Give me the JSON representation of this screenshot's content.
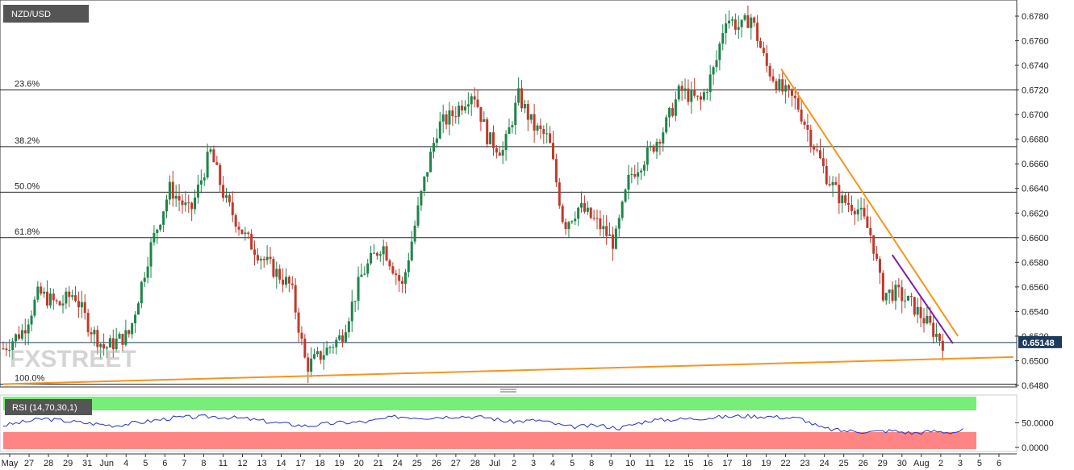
{
  "symbol": "NZD/USD",
  "watermark": "FXSTREET",
  "current_price_label": "0.65148",
  "chart_data": {
    "type": "candlestick",
    "title": "NZD/USD",
    "price_axis": {
      "min": 0.648,
      "max": 0.678,
      "step": 0.002,
      "tick_labels": [
        "0.6780",
        "0.6760",
        "0.6740",
        "0.6720",
        "0.6700",
        "0.6680",
        "0.6660",
        "0.6640",
        "0.6620",
        "0.6600",
        "0.6580",
        "0.6560",
        "0.6540",
        "0.6520",
        "0.6500",
        "0.6480"
      ]
    },
    "date_labels": [
      "May",
      "27",
      "28",
      "29",
      "31",
      "Jun",
      "4",
      "5",
      "6",
      "7",
      "8",
      "11",
      "12",
      "13",
      "14",
      "17",
      "18",
      "19",
      "20",
      "21",
      "24",
      "25",
      "26",
      "27",
      "28",
      "Jul",
      "2",
      "3",
      "4",
      "5",
      "8",
      "9",
      "10",
      "11",
      "12",
      "15",
      "16",
      "17",
      "18",
      "19",
      "22",
      "23",
      "24",
      "25",
      "26",
      "29",
      "30",
      "Aug",
      "2",
      "3",
      "5",
      "6"
    ],
    "fibonacci_levels": [
      {
        "label": "23.6%",
        "price": 0.672
      },
      {
        "label": "38.2%",
        "price": 0.6674
      },
      {
        "label": "50.0%",
        "price": 0.6637
      },
      {
        "label": "61.8%",
        "price": 0.66
      },
      {
        "label": "100.0%",
        "price": 0.6481
      }
    ],
    "current_price": 0.65148,
    "trendlines": [
      {
        "name": "support",
        "color": "#f7941d",
        "from": [
          0,
          0.6481
        ],
        "to": [
          1,
          0.6503
        ]
      },
      {
        "name": "resistance",
        "color": "#f7941d",
        "from": [
          0.77,
          0.6737
        ],
        "to": [
          0.945,
          0.652
        ]
      },
      {
        "name": "short-term resistance",
        "color": "#7a1fa2",
        "from": [
          0.88,
          0.6586
        ],
        "to": [
          0.94,
          0.6514
        ]
      }
    ],
    "series_keypoints": [
      [
        0.0,
        0.651
      ],
      [
        0.02,
        0.6525
      ],
      [
        0.035,
        0.6555
      ],
      [
        0.055,
        0.6545
      ],
      [
        0.07,
        0.6555
      ],
      [
        0.085,
        0.6528
      ],
      [
        0.1,
        0.651
      ],
      [
        0.125,
        0.6522
      ],
      [
        0.145,
        0.659
      ],
      [
        0.165,
        0.664
      ],
      [
        0.185,
        0.662
      ],
      [
        0.205,
        0.667
      ],
      [
        0.22,
        0.663
      ],
      [
        0.24,
        0.66
      ],
      [
        0.26,
        0.658
      ],
      [
        0.285,
        0.656
      ],
      [
        0.3,
        0.6495
      ],
      [
        0.315,
        0.6505
      ],
      [
        0.335,
        0.652
      ],
      [
        0.355,
        0.657
      ],
      [
        0.375,
        0.6595
      ],
      [
        0.395,
        0.656
      ],
      [
        0.415,
        0.664
      ],
      [
        0.43,
        0.669
      ],
      [
        0.445,
        0.67
      ],
      [
        0.465,
        0.672
      ],
      [
        0.48,
        0.668
      ],
      [
        0.495,
        0.667
      ],
      [
        0.51,
        0.6715
      ],
      [
        0.525,
        0.669
      ],
      [
        0.54,
        0.668
      ],
      [
        0.555,
        0.661
      ],
      [
        0.57,
        0.6625
      ],
      [
        0.59,
        0.661
      ],
      [
        0.605,
        0.6595
      ],
      [
        0.62,
        0.665
      ],
      [
        0.64,
        0.667
      ],
      [
        0.655,
        0.669
      ],
      [
        0.67,
        0.672
      ],
      [
        0.69,
        0.671
      ],
      [
        0.705,
        0.674
      ],
      [
        0.715,
        0.678
      ],
      [
        0.73,
        0.677
      ],
      [
        0.74,
        0.678
      ],
      [
        0.755,
        0.674
      ],
      [
        0.77,
        0.672
      ],
      [
        0.785,
        0.671
      ],
      [
        0.8,
        0.668
      ],
      [
        0.815,
        0.665
      ],
      [
        0.83,
        0.663
      ],
      [
        0.845,
        0.6625
      ],
      [
        0.86,
        0.66
      ],
      [
        0.87,
        0.6555
      ],
      [
        0.885,
        0.6555
      ],
      [
        0.9,
        0.6545
      ],
      [
        0.915,
        0.653
      ],
      [
        0.93,
        0.6515
      ]
    ],
    "rsi": {
      "label": "RSI (14,70,30,1)",
      "overbought": 70,
      "oversold": 30,
      "tick_labels": [
        "50.0000",
        "0.0000"
      ],
      "keypoints": [
        [
          0.0,
          45
        ],
        [
          0.04,
          58
        ],
        [
          0.08,
          50
        ],
        [
          0.11,
          45
        ],
        [
          0.14,
          52
        ],
        [
          0.17,
          60
        ],
        [
          0.21,
          62
        ],
        [
          0.24,
          58
        ],
        [
          0.27,
          50
        ],
        [
          0.3,
          44
        ],
        [
          0.33,
          50
        ],
        [
          0.36,
          52
        ],
        [
          0.39,
          62
        ],
        [
          0.42,
          60
        ],
        [
          0.45,
          63
        ],
        [
          0.48,
          60
        ],
        [
          0.5,
          52
        ],
        [
          0.53,
          55
        ],
        [
          0.56,
          42
        ],
        [
          0.59,
          45
        ],
        [
          0.61,
          40
        ],
        [
          0.64,
          55
        ],
        [
          0.67,
          57
        ],
        [
          0.7,
          60
        ],
        [
          0.73,
          63
        ],
        [
          0.76,
          62
        ],
        [
          0.79,
          58
        ],
        [
          0.81,
          40
        ],
        [
          0.83,
          35
        ],
        [
          0.86,
          33
        ],
        [
          0.88,
          35
        ],
        [
          0.9,
          30
        ],
        [
          0.92,
          34
        ],
        [
          0.94,
          32
        ],
        [
          0.95,
          36
        ]
      ]
    }
  }
}
